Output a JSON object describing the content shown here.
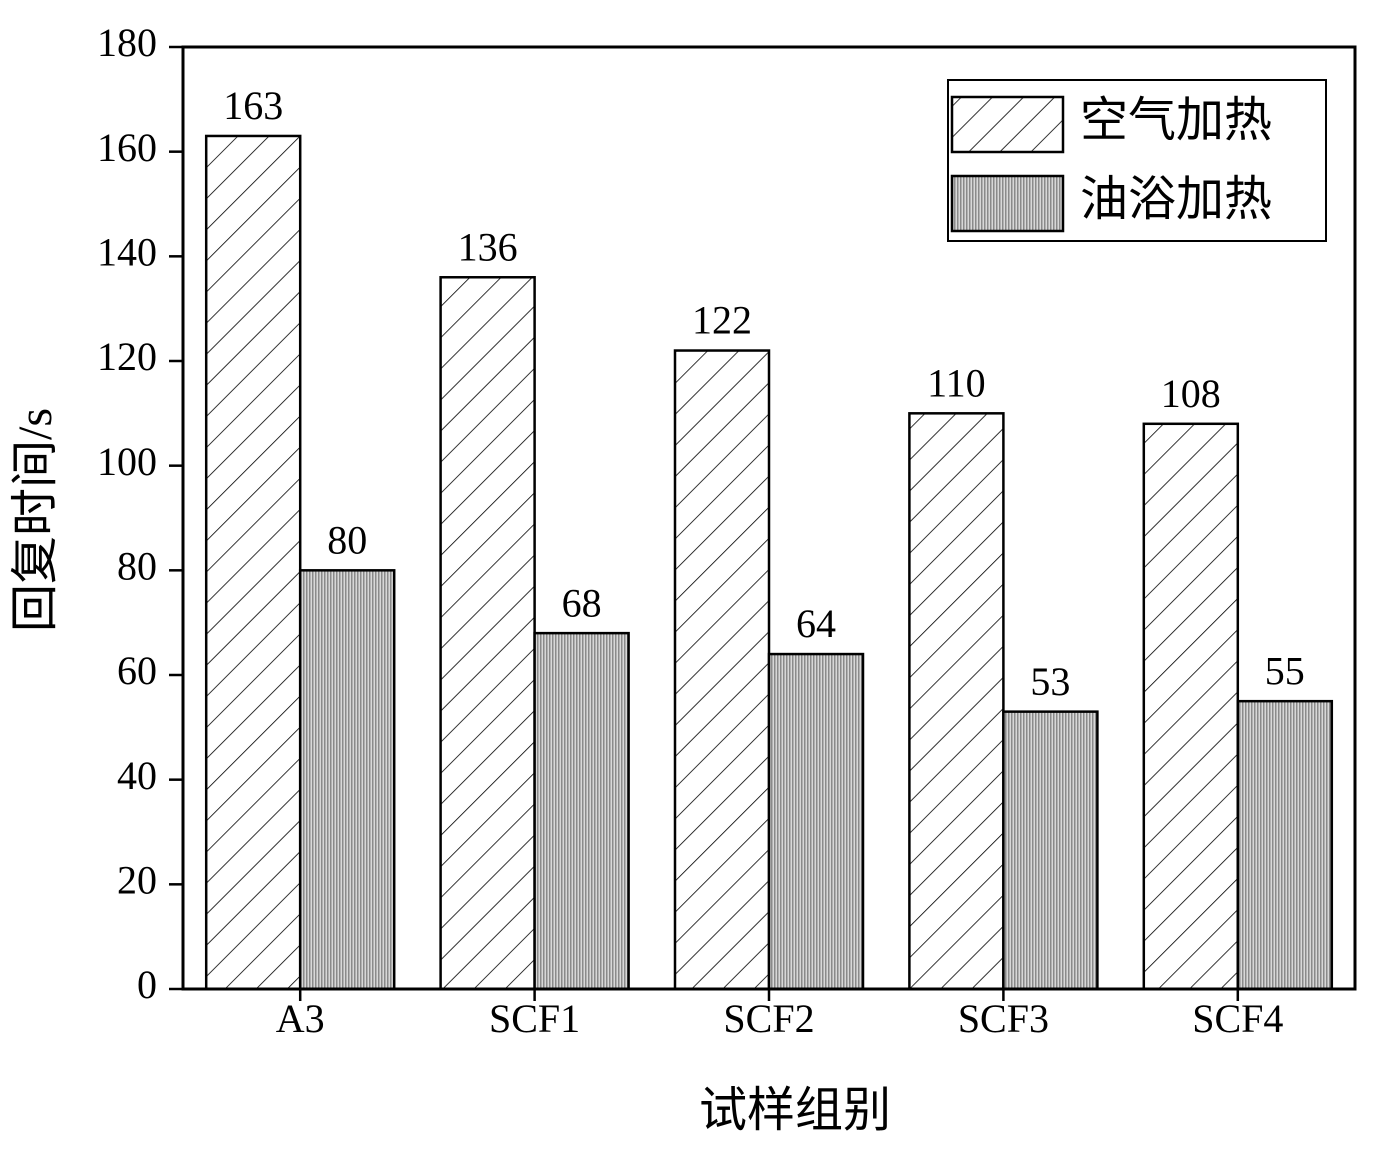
{
  "chart_data": {
    "type": "bar",
    "y_label": "回复时间/s",
    "x_label": "试样组别",
    "categories": [
      "A3",
      "SCF1",
      "SCF2",
      "SCF3",
      "SCF4"
    ],
    "series": [
      {
        "name": "空气加热",
        "color": "#ffffff",
        "pattern": "hatch",
        "values": [
          163,
          136,
          122,
          110,
          108
        ]
      },
      {
        "name": "油浴加热",
        "color": "#c4c4c4",
        "pattern": "dots",
        "values": [
          80,
          68,
          64,
          53,
          55
        ]
      }
    ],
    "ylim": [
      0,
      180
    ],
    "yticks": [
      0,
      20,
      40,
      60,
      80,
      100,
      120,
      140,
      160,
      180
    ],
    "legend": "upper right"
  }
}
